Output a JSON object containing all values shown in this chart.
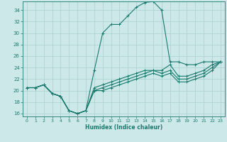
{
  "title": "",
  "xlabel": "Humidex (Indice chaleur)",
  "bg_color": "#cce8e8",
  "line_color": "#1a7a6e",
  "grid_color": "#aacfcf",
  "xlim": [
    -0.5,
    23.5
  ],
  "ylim": [
    15.5,
    35.5
  ],
  "xticks": [
    0,
    1,
    2,
    3,
    4,
    5,
    6,
    7,
    8,
    9,
    10,
    11,
    12,
    13,
    14,
    15,
    16,
    17,
    18,
    19,
    20,
    21,
    22,
    23
  ],
  "yticks": [
    16,
    18,
    20,
    22,
    24,
    26,
    28,
    30,
    32,
    34
  ],
  "curve1_x": [
    0,
    1,
    2,
    3,
    4,
    5,
    6,
    7,
    8,
    9,
    10,
    11,
    12,
    13,
    14,
    15,
    16,
    17,
    18,
    19,
    20,
    21,
    22,
    23
  ],
  "curve1_y": [
    20.5,
    20.5,
    21.0,
    19.5,
    19.0,
    16.5,
    16.0,
    16.5,
    23.5,
    30.0,
    31.5,
    31.5,
    33.0,
    34.5,
    35.3,
    35.5,
    34.0,
    25.0,
    25.0,
    24.5,
    24.5,
    25.0,
    25.0,
    25.0
  ],
  "curve2_x": [
    0,
    1,
    2,
    3,
    4,
    5,
    6,
    7,
    8,
    9,
    10,
    11,
    12,
    13,
    14,
    15,
    16,
    17,
    18,
    19,
    20,
    21,
    22,
    23
  ],
  "curve2_y": [
    20.5,
    20.5,
    21.0,
    19.5,
    19.0,
    16.5,
    16.0,
    16.5,
    20.5,
    21.0,
    21.5,
    22.0,
    22.5,
    23.0,
    23.5,
    23.5,
    23.5,
    24.5,
    22.5,
    22.5,
    23.0,
    23.5,
    24.5,
    25.0
  ],
  "curve3_x": [
    0,
    1,
    2,
    3,
    4,
    5,
    6,
    7,
    8,
    9,
    10,
    11,
    12,
    13,
    14,
    15,
    16,
    17,
    18,
    19,
    20,
    21,
    22,
    23
  ],
  "curve3_y": [
    20.5,
    20.5,
    21.0,
    19.5,
    19.0,
    16.5,
    16.0,
    16.5,
    20.0,
    20.5,
    21.0,
    21.5,
    22.0,
    22.5,
    23.0,
    23.5,
    23.0,
    23.5,
    22.0,
    22.0,
    22.5,
    23.0,
    24.0,
    25.0
  ],
  "curve4_x": [
    0,
    1,
    2,
    3,
    4,
    5,
    6,
    7,
    8,
    9,
    10,
    11,
    12,
    13,
    14,
    15,
    16,
    17,
    18,
    19,
    20,
    21,
    22,
    23
  ],
  "curve4_y": [
    20.5,
    20.5,
    21.0,
    19.5,
    19.0,
    16.5,
    16.0,
    16.5,
    20.0,
    20.0,
    20.5,
    21.0,
    21.5,
    22.0,
    22.5,
    23.0,
    22.5,
    23.0,
    21.5,
    21.5,
    22.0,
    22.5,
    23.5,
    25.0
  ]
}
